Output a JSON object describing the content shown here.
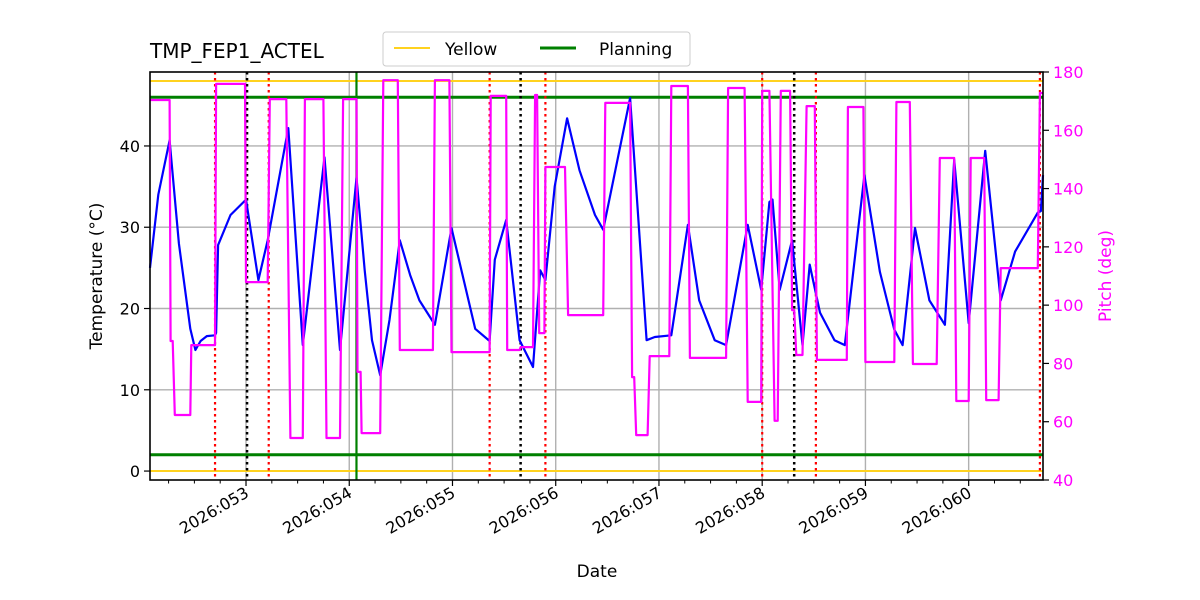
{
  "chart_data": {
    "type": "line",
    "title": "TMP_FEP1_ACTEL",
    "xlabel": "Date",
    "ylabel": "Temperature ($^\\circ$C)",
    "ylabel_display": "Temperature (°C)",
    "y2label": "Pitch (deg)",
    "xlim": [
      52.07,
      60.72
    ],
    "ylim": [
      -1.1,
      49.1
    ],
    "y2lim": [
      40,
      180
    ],
    "grid": true,
    "x_ticks": [
      53,
      54,
      55,
      56,
      57,
      58,
      59,
      60
    ],
    "x_tick_labels": [
      "2026:053",
      "2026:054",
      "2026:055",
      "2026:056",
      "2026:057",
      "2026:058",
      "2026:059",
      "2026:060"
    ],
    "y_ticks": [
      0,
      10,
      20,
      30,
      40
    ],
    "y_tick_labels": [
      "0",
      "10",
      "20",
      "30",
      "40"
    ],
    "y2_ticks": [
      40,
      60,
      80,
      100,
      120,
      140,
      160,
      180
    ],
    "y2_tick_labels": [
      "40",
      "60",
      "80",
      "100",
      "120",
      "140",
      "160",
      "180"
    ],
    "legend": {
      "placement": "top-center",
      "entries": [
        {
          "label": "Yellow",
          "color": "#ffd21f"
        },
        {
          "label": "Planning",
          "color": "#008000"
        }
      ]
    },
    "limit_lines": [
      {
        "kind": "Yellow",
        "value": 48,
        "color": "#ffd21f"
      },
      {
        "kind": "Yellow",
        "value": 0,
        "color": "#ffd21f"
      },
      {
        "kind": "Planning",
        "value": 46,
        "color": "#008000"
      },
      {
        "kind": "Planning",
        "value": 2,
        "color": "#008000"
      }
    ],
    "vlines": {
      "red_dotted": [
        52.7,
        53.22,
        55.36,
        55.9,
        58.0,
        58.52,
        60.69
      ],
      "black_dotted": [
        53.01,
        55.66,
        58.31
      ],
      "green_solid": [
        54.07
      ]
    },
    "colors": {
      "temperature": "#0000ff",
      "pitch": "#ff00ff",
      "red": "#ff0000",
      "black": "#000000",
      "grid": "#b0b0b0"
    },
    "series": [
      {
        "axis": "left",
        "color": "#0000ff",
        "points": [
          [
            52.07,
            25.0
          ],
          [
            52.15,
            34
          ],
          [
            52.26,
            40.7
          ],
          [
            52.35,
            28
          ],
          [
            52.46,
            17.5
          ],
          [
            52.51,
            14.9
          ],
          [
            52.56,
            16
          ],
          [
            52.62,
            16.6
          ],
          [
            52.7,
            16.7
          ],
          [
            52.71,
            17
          ],
          [
            52.73,
            27.8
          ],
          [
            52.85,
            31.5
          ],
          [
            53.0,
            33.4
          ],
          [
            53.12,
            23.5
          ],
          [
            53.21,
            28.4
          ],
          [
            53.41,
            42.2
          ],
          [
            53.55,
            15.5
          ],
          [
            53.76,
            38.6
          ],
          [
            53.91,
            14.9
          ],
          [
            54.07,
            36.1
          ],
          [
            54.15,
            24.7
          ],
          [
            54.22,
            16.1
          ],
          [
            54.3,
            11.8
          ],
          [
            54.39,
            18.6
          ],
          [
            54.49,
            28.4
          ],
          [
            54.59,
            24.1
          ],
          [
            54.68,
            21.0
          ],
          [
            54.8,
            18.6
          ],
          [
            54.83,
            18.0
          ],
          [
            54.99,
            29.9
          ],
          [
            55.09,
            24.5
          ],
          [
            55.22,
            17.5
          ],
          [
            55.36,
            16.0
          ],
          [
            55.41,
            26.0
          ],
          [
            55.52,
            30.9
          ],
          [
            55.65,
            16.1
          ],
          [
            55.78,
            12.8
          ],
          [
            55.85,
            24.7
          ],
          [
            55.9,
            23.5
          ],
          [
            55.99,
            35
          ],
          [
            56.11,
            43.4
          ],
          [
            56.23,
            37.0
          ],
          [
            56.38,
            31.5
          ],
          [
            56.46,
            29.7
          ],
          [
            56.72,
            45.9
          ],
          [
            56.88,
            16.1
          ],
          [
            56.96,
            16.5
          ],
          [
            57.12,
            16.7
          ],
          [
            57.28,
            30.3
          ],
          [
            57.39,
            21.0
          ],
          [
            57.54,
            16.1
          ],
          [
            57.65,
            15.5
          ],
          [
            57.86,
            30.3
          ],
          [
            57.99,
            22.3
          ],
          [
            58.07,
            33.1
          ],
          [
            58.1,
            33.4
          ],
          [
            58.17,
            22.3
          ],
          [
            58.29,
            28.4
          ],
          [
            58.39,
            15.5
          ],
          [
            58.46,
            25.4
          ],
          [
            58.56,
            19.5
          ],
          [
            58.7,
            16.1
          ],
          [
            58.8,
            15.5
          ],
          [
            58.99,
            36.4
          ],
          [
            59.14,
            24.5
          ],
          [
            59.28,
            17.4
          ],
          [
            59.36,
            15.5
          ],
          [
            59.48,
            29.9
          ],
          [
            59.62,
            21.0
          ],
          [
            59.77,
            18.0
          ],
          [
            59.86,
            38.3
          ],
          [
            60.0,
            18.2
          ],
          [
            60.16,
            39.4
          ],
          [
            60.31,
            21.0
          ],
          [
            60.45,
            27
          ],
          [
            60.67,
            31.8
          ],
          [
            60.7,
            32
          ],
          [
            60.72,
            36.4
          ]
        ]
      },
      {
        "axis": "right",
        "color": "#ff00ff",
        "points": [
          [
            52.07,
            170.4
          ],
          [
            52.26,
            170.4
          ],
          [
            52.27,
            87.7
          ],
          [
            52.29,
            87.7
          ],
          [
            52.31,
            62.3
          ],
          [
            52.46,
            62.3
          ],
          [
            52.47,
            86.3
          ],
          [
            52.7,
            86.3
          ],
          [
            52.71,
            175.9
          ],
          [
            52.99,
            175.9
          ],
          [
            53.0,
            107.9
          ],
          [
            53.21,
            107.9
          ],
          [
            53.23,
            170.7
          ],
          [
            53.39,
            170.7
          ],
          [
            53.43,
            54.4
          ],
          [
            53.55,
            54.4
          ],
          [
            53.57,
            170.7
          ],
          [
            53.75,
            170.7
          ],
          [
            53.78,
            54.4
          ],
          [
            53.91,
            54.4
          ],
          [
            53.94,
            170.7
          ],
          [
            54.07,
            170.7
          ],
          [
            54.08,
            77.1
          ],
          [
            54.11,
            77.1
          ],
          [
            54.12,
            56.1
          ],
          [
            54.3,
            56.1
          ],
          [
            54.33,
            177.2
          ],
          [
            54.47,
            177.2
          ],
          [
            54.49,
            84.6
          ],
          [
            54.81,
            84.6
          ],
          [
            54.83,
            177.2
          ],
          [
            54.97,
            177.2
          ],
          [
            54.99,
            83.9
          ],
          [
            55.36,
            83.9
          ],
          [
            55.37,
            171.8
          ],
          [
            55.52,
            171.8
          ],
          [
            55.53,
            84.6
          ],
          [
            55.65,
            84.6
          ],
          [
            55.66,
            85.6
          ],
          [
            55.78,
            85.6
          ],
          [
            55.8,
            172.1
          ],
          [
            55.82,
            172.1
          ],
          [
            55.84,
            90.4
          ],
          [
            55.89,
            90.4
          ],
          [
            55.9,
            147.4
          ],
          [
            56.09,
            147.4
          ],
          [
            56.12,
            96.6
          ],
          [
            56.46,
            96.6
          ],
          [
            56.48,
            169.4
          ],
          [
            56.72,
            169.4
          ],
          [
            56.74,
            75.3
          ],
          [
            56.76,
            75.3
          ],
          [
            56.78,
            55.4
          ],
          [
            56.89,
            55.4
          ],
          [
            56.91,
            82.5
          ],
          [
            57.1,
            82.5
          ],
          [
            57.12,
            175.2
          ],
          [
            57.28,
            175.2
          ],
          [
            57.3,
            81.9
          ],
          [
            57.65,
            81.9
          ],
          [
            57.67,
            174.5
          ],
          [
            57.83,
            174.5
          ],
          [
            57.86,
            66.8
          ],
          [
            57.99,
            66.8
          ],
          [
            58.0,
            173.5
          ],
          [
            58.07,
            173.5
          ],
          [
            58.12,
            60.3
          ],
          [
            58.15,
            60.3
          ],
          [
            58.18,
            173.5
          ],
          [
            58.27,
            173.5
          ],
          [
            58.29,
            98.3
          ],
          [
            58.31,
            98.3
          ],
          [
            58.33,
            82.9
          ],
          [
            58.39,
            82.9
          ],
          [
            58.43,
            168.3
          ],
          [
            58.51,
            168.3
          ],
          [
            58.53,
            81.2
          ],
          [
            58.82,
            81.2
          ],
          [
            58.83,
            168.0
          ],
          [
            58.98,
            168.0
          ],
          [
            59.0,
            80.5
          ],
          [
            59.28,
            80.5
          ],
          [
            59.3,
            169.7
          ],
          [
            59.43,
            169.7
          ],
          [
            59.46,
            79.8
          ],
          [
            59.69,
            79.8
          ],
          [
            59.72,
            150.5
          ],
          [
            59.86,
            150.5
          ],
          [
            59.88,
            67.1
          ],
          [
            60.0,
            67.1
          ],
          [
            60.02,
            150.5
          ],
          [
            60.15,
            150.5
          ],
          [
            60.17,
            67.4
          ],
          [
            60.29,
            67.4
          ],
          [
            60.31,
            112.7
          ],
          [
            60.67,
            112.7
          ],
          [
            60.69,
            172.8
          ],
          [
            60.72,
            172.8
          ]
        ]
      }
    ]
  }
}
